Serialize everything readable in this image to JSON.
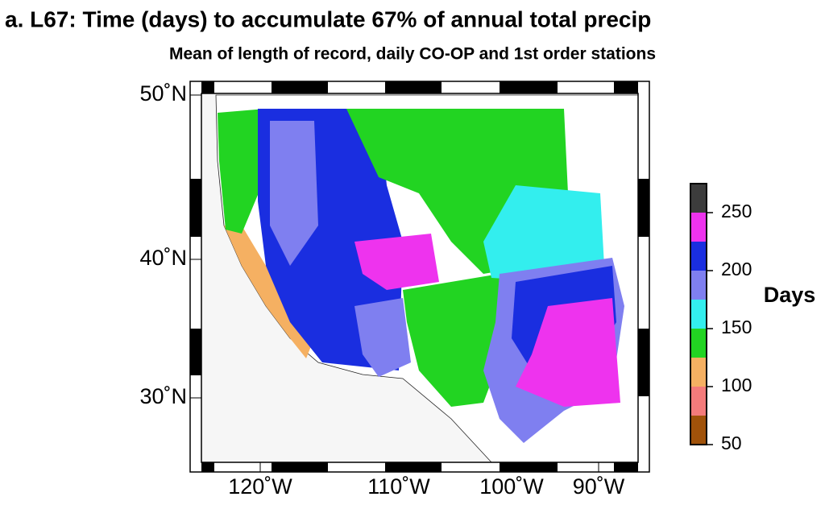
{
  "title": "a.  L67: Time (days) to accumulate 67% of annual total precip",
  "subtitle": "Mean of length of record, daily CO-OP and 1st order stations",
  "lat_ticks": [
    {
      "value": 50,
      "label": "50˚N"
    },
    {
      "value": 40,
      "label": "40˚N"
    },
    {
      "value": 30,
      "label": "30˚N"
    }
  ],
  "lon_ticks": [
    {
      "value": -120,
      "label": "120˚W"
    },
    {
      "value": -110,
      "label": "110˚W"
    },
    {
      "value": -100,
      "label": "100˚W"
    },
    {
      "value": -90,
      "label": "90˚W"
    }
  ],
  "colorbar": {
    "label": "Days",
    "lim": [
      50,
      275
    ],
    "ticks": [
      50,
      100,
      150,
      200,
      250
    ],
    "colors": [
      "#a0520a",
      "#f47b7b",
      "#f5b062",
      "#22d422",
      "#33eeee",
      "#7f7ff0",
      "#1a2ee0",
      "#ee33ee",
      "#3c3c3c"
    ]
  }
}
